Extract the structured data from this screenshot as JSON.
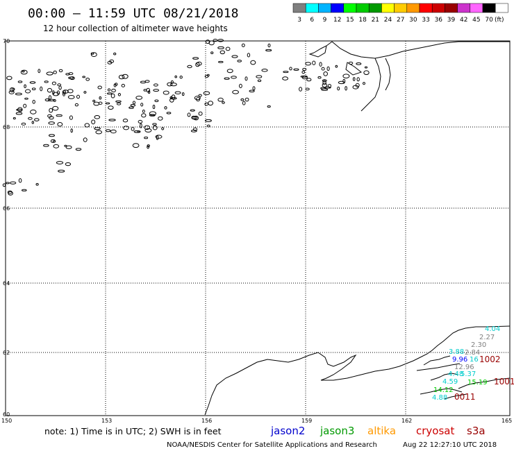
{
  "header": {
    "title": "00:00 – 11:59 UTC 08/21/2018",
    "subtitle": "12 hour collection of altimeter wave heights"
  },
  "colorbar": {
    "unit": "(ft)",
    "bins": [
      {
        "label": "3",
        "color": "#7f7f7f"
      },
      {
        "label": "6",
        "color": "#00ffff"
      },
      {
        "label": "9",
        "color": "#00b4ff"
      },
      {
        "label": "12",
        "color": "#0000ff"
      },
      {
        "label": "15",
        "color": "#00ff00"
      },
      {
        "label": "18",
        "color": "#00cc00"
      },
      {
        "label": "21",
        "color": "#009900"
      },
      {
        "label": "24",
        "color": "#ffff00"
      },
      {
        "label": "27",
        "color": "#ffcc00"
      },
      {
        "label": "30",
        "color": "#ff9900"
      },
      {
        "label": "33",
        "color": "#ff0000"
      },
      {
        "label": "36",
        "color": "#cc0000"
      },
      {
        "label": "39",
        "color": "#990000"
      },
      {
        "label": "42",
        "color": "#cc33cc"
      },
      {
        "label": "45",
        "color": "#ff66ff"
      },
      {
        "label": "70",
        "color": "#000000"
      },
      {
        "label": "",
        "color": "#ffffff"
      }
    ]
  },
  "map": {
    "lat_labels": [
      "70",
      "68",
      "66",
      "64",
      "62",
      "60"
    ],
    "lon_labels": [
      "150",
      "153",
      "156",
      "159",
      "162",
      "165"
    ],
    "observations": [
      {
        "text": "4.04",
        "color": "#00cccc"
      },
      {
        "text": "2.27",
        "color": "#7f7f7f"
      },
      {
        "text": "2.30",
        "color": "#7f7f7f"
      },
      {
        "text": "3.88",
        "color": "#00cccc"
      },
      {
        "text": "2.84",
        "color": "#7f7f7f"
      },
      {
        "text": "9.96",
        "color": "#0000ff"
      },
      {
        "text": "16",
        "color": "#00cccc"
      },
      {
        "text": "1002",
        "color": "#990000"
      },
      {
        "text": "12.96",
        "color": "#7f7f7f"
      },
      {
        "text": "4.48",
        "color": "#00cccc"
      },
      {
        "text": "5.37",
        "color": "#00cccc"
      },
      {
        "text": "4.59",
        "color": "#00cccc"
      },
      {
        "text": "15.19",
        "color": "#00cc00"
      },
      {
        "text": "1001",
        "color": "#990000"
      },
      {
        "text": "14.12",
        "color": "#00cc00"
      },
      {
        "text": "4.88",
        "color": "#00cccc"
      },
      {
        "text": "0011",
        "color": "#990000"
      }
    ]
  },
  "footer": {
    "note": "note: 1) Time is in UTC; 2) SWH is in feet",
    "legend": [
      {
        "label": "jason2",
        "color": "#0000cc"
      },
      {
        "label": "jason3",
        "color": "#009900"
      },
      {
        "label": "altika",
        "color": "#ff9900"
      },
      {
        "label": "cryosat",
        "color": "#cc0000"
      },
      {
        "label": "s3a",
        "color": "#990000"
      }
    ],
    "credit": "NOAA/NESDIS Center for Satellite Applications and Research",
    "timestamp": "Aug 22 12:27:10 UTC 2018"
  }
}
